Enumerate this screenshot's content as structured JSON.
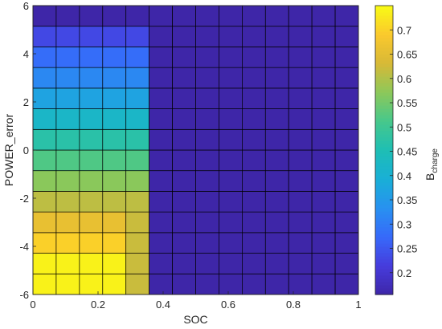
{
  "chart_data": {
    "type": "heatmap",
    "xlabel": "SOC",
    "ylabel": "POWER_error",
    "colorbar_label": "B",
    "colorbar_label_sub": "charge",
    "xlim": [
      0,
      1
    ],
    "ylim": [
      -6,
      6
    ],
    "x_ticks": [
      0,
      0.2,
      0.4,
      0.6,
      0.8,
      1
    ],
    "x_tick_labels": [
      "0",
      "0.2",
      "0.4",
      "0.6",
      "0.8",
      "1"
    ],
    "y_ticks": [
      -6,
      -4,
      -2,
      0,
      2,
      4,
      6
    ],
    "y_tick_labels": [
      "-6",
      "-4",
      "-2",
      "0",
      "2",
      "4",
      "6"
    ],
    "colorbar_ticks": [
      0.2,
      0.25,
      0.3,
      0.35,
      0.4,
      0.45,
      0.5,
      0.55,
      0.6,
      0.65,
      0.7
    ],
    "colorbar_tick_labels": [
      "0.2",
      "0.25",
      "0.3",
      "0.35",
      "0.4",
      "0.45",
      "0.5",
      "0.55",
      "0.6",
      "0.65",
      "0.7"
    ],
    "clim": [
      0.155,
      0.75
    ],
    "colormap": "parula",
    "x_edges": [
      0,
      0.0714,
      0.1429,
      0.2143,
      0.2857,
      0.3571,
      0.4286,
      0.5,
      0.5714,
      0.6429,
      0.7143,
      0.7857,
      0.8571,
      0.9286,
      1
    ],
    "y_edges": [
      -6,
      -5.143,
      -4.286,
      -3.429,
      -2.571,
      -1.714,
      -0.857,
      0,
      0.857,
      1.714,
      2.571,
      3.429,
      4.286,
      5.143,
      6
    ],
    "values_bottom_to_top": [
      [
        0.74,
        0.74,
        0.74,
        0.74,
        0.62,
        0.155,
        0.155,
        0.155,
        0.155,
        0.155,
        0.155,
        0.155,
        0.155,
        0.155
      ],
      [
        0.74,
        0.74,
        0.74,
        0.74,
        0.62,
        0.155,
        0.155,
        0.155,
        0.155,
        0.155,
        0.155,
        0.155,
        0.155,
        0.155
      ],
      [
        0.7,
        0.7,
        0.7,
        0.7,
        0.62,
        0.155,
        0.155,
        0.155,
        0.155,
        0.155,
        0.155,
        0.155,
        0.155,
        0.155
      ],
      [
        0.66,
        0.66,
        0.66,
        0.66,
        0.62,
        0.155,
        0.155,
        0.155,
        0.155,
        0.155,
        0.155,
        0.155,
        0.155,
        0.155
      ],
      [
        0.61,
        0.61,
        0.61,
        0.61,
        0.61,
        0.155,
        0.155,
        0.155,
        0.155,
        0.155,
        0.155,
        0.155,
        0.155,
        0.155
      ],
      [
        0.57,
        0.57,
        0.57,
        0.57,
        0.57,
        0.155,
        0.155,
        0.155,
        0.155,
        0.155,
        0.155,
        0.155,
        0.155,
        0.155
      ],
      [
        0.52,
        0.52,
        0.52,
        0.52,
        0.52,
        0.155,
        0.155,
        0.155,
        0.155,
        0.155,
        0.155,
        0.155,
        0.155,
        0.155
      ],
      [
        0.47,
        0.47,
        0.47,
        0.47,
        0.47,
        0.155,
        0.155,
        0.155,
        0.155,
        0.155,
        0.155,
        0.155,
        0.155,
        0.155
      ],
      [
        0.42,
        0.42,
        0.42,
        0.42,
        0.42,
        0.155,
        0.155,
        0.155,
        0.155,
        0.155,
        0.155,
        0.155,
        0.155,
        0.155
      ],
      [
        0.37,
        0.37,
        0.37,
        0.37,
        0.37,
        0.155,
        0.155,
        0.155,
        0.155,
        0.155,
        0.155,
        0.155,
        0.155,
        0.155
      ],
      [
        0.32,
        0.32,
        0.32,
        0.32,
        0.32,
        0.155,
        0.155,
        0.155,
        0.155,
        0.155,
        0.155,
        0.155,
        0.155,
        0.155
      ],
      [
        0.28,
        0.28,
        0.28,
        0.28,
        0.28,
        0.155,
        0.155,
        0.155,
        0.155,
        0.155,
        0.155,
        0.155,
        0.155,
        0.155
      ],
      [
        0.23,
        0.23,
        0.23,
        0.23,
        0.23,
        0.155,
        0.155,
        0.155,
        0.155,
        0.155,
        0.155,
        0.155,
        0.155,
        0.155
      ],
      [
        0.155,
        0.155,
        0.155,
        0.155,
        0.155,
        0.155,
        0.155,
        0.155,
        0.155,
        0.155,
        0.155,
        0.155,
        0.155,
        0.155
      ]
    ],
    "grid": true,
    "colorbar_position": "right"
  }
}
